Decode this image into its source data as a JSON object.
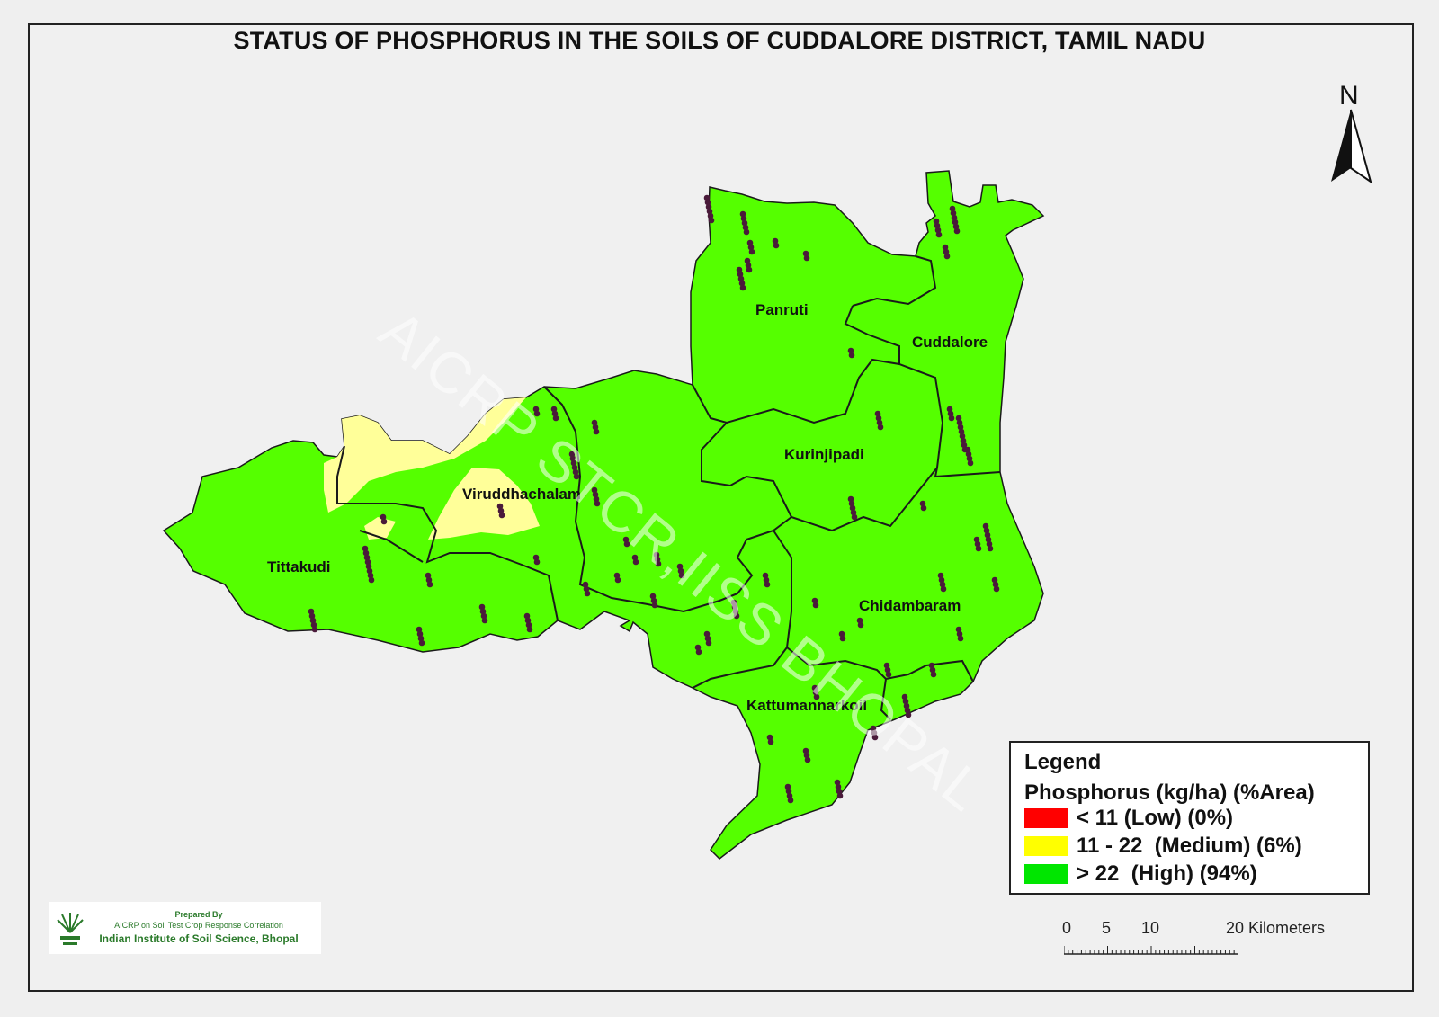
{
  "title": "STATUS OF PHOSPHORUS  IN THE SOILS OF CUDDALORE DISTRICT,  TAMIL NADU",
  "north_label": "N",
  "watermark": "AICRP STCR,IISS BHOPAL",
  "places": {
    "panruti": "Panruti",
    "cuddalore": "Cuddalore",
    "kurinjipadi": "Kurinjipadi",
    "viruddhachalam": "Viruddhachalam",
    "tittakudi": "Tittakudi",
    "chidambaram": "Chidambaram",
    "kattumannarkoil": "Kattumannarkoil"
  },
  "legend": {
    "title": "Legend",
    "subtitle": "Phosphorus (kg/ha) (%Area)",
    "items": [
      {
        "label": "< 11 (Low) (0%)",
        "color": "#ff0000"
      },
      {
        "label": "11 - 22  (Medium) (6%)",
        "color": "#ffff00"
      },
      {
        "label": "> 22  (High) (94%)",
        "color": "#00e600"
      }
    ]
  },
  "scale": {
    "labels": [
      "0",
      "5",
      "10",
      "20 Kilometers"
    ]
  },
  "credit": {
    "prepared": "Prepared By",
    "org": "AICRP on Soil Test Crop Response Correlation",
    "institute": "Indian Institute of Soil Science, Bhopal"
  },
  "colors": {
    "high": "#55ff00",
    "medium": "#ffff99",
    "boundary": "#1a1a1a",
    "sample": "#4a1a3a"
  }
}
